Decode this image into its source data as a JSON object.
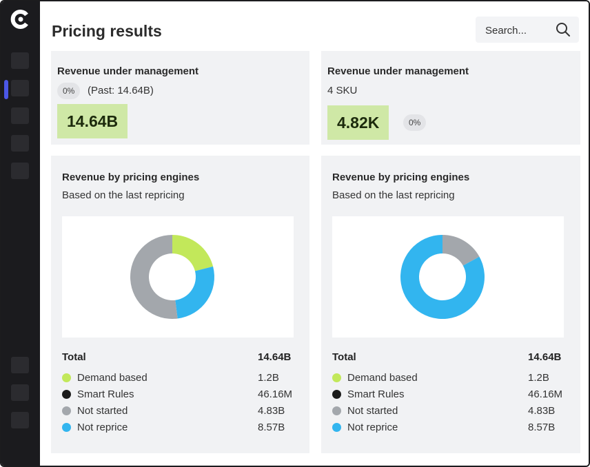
{
  "page": {
    "title": "Pricing results"
  },
  "search": {
    "placeholder": "Search..."
  },
  "colors": {
    "green": "#c2e85a",
    "black": "#1b1b1b",
    "grey": "#a3a7ac",
    "blue": "#32b5ef",
    "accent": "#4b57e6"
  },
  "cards": [
    {
      "title": "Revenue under management",
      "pct": "0%",
      "subtext": "(Past: 14.64B)",
      "value": "14.64B"
    },
    {
      "title": "Revenue under management",
      "subtext": "4 SKU",
      "value": "4.82K",
      "pct": "0%"
    }
  ],
  "engines": [
    {
      "title": "Revenue by pricing engines",
      "subtitle": "Based on the last repricing",
      "total_label": "Total",
      "total_value": "14.64B",
      "legend": [
        {
          "label": "Demand based",
          "value": "1.2B",
          "color": "#c2e85a"
        },
        {
          "label": "Smart Rules",
          "value": "46.16M",
          "color": "#1b1b1b"
        },
        {
          "label": "Not started",
          "value": "4.83B",
          "color": "#a3a7ac"
        },
        {
          "label": "Not reprice",
          "value": "8.57B",
          "color": "#32b5ef"
        }
      ]
    },
    {
      "title": "Revenue by pricing engines",
      "subtitle": "Based on the last repricing",
      "total_label": "Total",
      "total_value": "14.64B",
      "legend": [
        {
          "label": "Demand based",
          "value": "1.2B",
          "color": "#c2e85a"
        },
        {
          "label": "Smart Rules",
          "value": "46.16M",
          "color": "#1b1b1b"
        },
        {
          "label": "Not started",
          "value": "4.83B",
          "color": "#a3a7ac"
        },
        {
          "label": "Not reprice",
          "value": "8.57B",
          "color": "#32b5ef"
        }
      ]
    }
  ],
  "chart_data": [
    {
      "type": "pie",
      "title": "Revenue by pricing engines",
      "categories": [
        "Demand based",
        "Not reprice",
        "Not started"
      ],
      "values": [
        0.21,
        0.27,
        0.52
      ],
      "colors": [
        "#c2e85a",
        "#32b5ef",
        "#a3a7ac"
      ]
    },
    {
      "type": "pie",
      "title": "Revenue by pricing engines",
      "categories": [
        "Not started",
        "Not reprice"
      ],
      "values": [
        0.17,
        0.83
      ],
      "colors": [
        "#a3a7ac",
        "#32b5ef"
      ]
    }
  ]
}
